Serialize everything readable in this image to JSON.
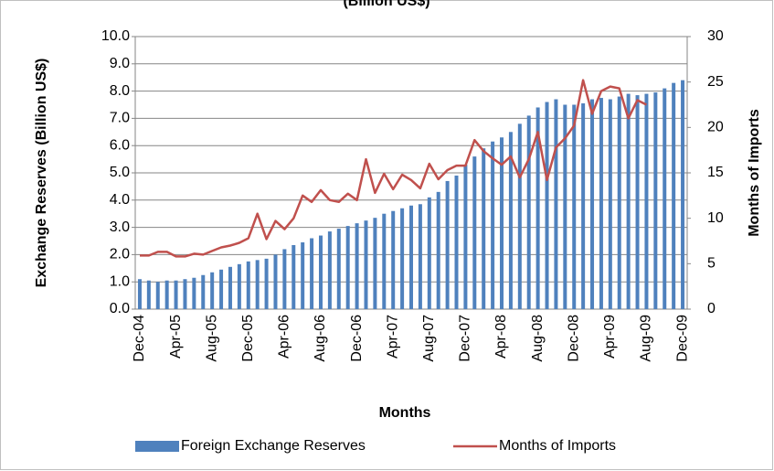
{
  "chart_data": {
    "type": "bar_line",
    "title": "(Billion US$)",
    "x_label": "Months",
    "y_label": "Exchange Reserves (Billion US$)",
    "y2_label": "Months of Imports",
    "categories": [
      "Dec-04",
      null,
      null,
      null,
      "Apr-05",
      null,
      null,
      null,
      "Aug-05",
      null,
      null,
      null,
      "Dec-05",
      null,
      null,
      null,
      "Apr-06",
      null,
      null,
      null,
      "Aug-06",
      null,
      null,
      null,
      "Dec-06",
      null,
      null,
      null,
      "Apr-07",
      null,
      null,
      null,
      "Aug-07",
      null,
      null,
      null,
      "Dec-07",
      null,
      null,
      null,
      "Apr-08",
      null,
      null,
      null,
      "Aug-08",
      null,
      null,
      null,
      "Dec-08",
      null,
      null,
      null,
      "Apr-09",
      null,
      null,
      null,
      "Aug-09",
      null,
      null,
      null,
      "Dec-09"
    ],
    "series": [
      {
        "name": "Foreign Exchange Reserves",
        "color": "#4f81bd",
        "kind": "bar",
        "values": [
          1.1,
          1.05,
          1.0,
          1.05,
          1.05,
          1.1,
          1.15,
          1.25,
          1.35,
          1.45,
          1.55,
          1.65,
          1.75,
          1.8,
          1.85,
          2.0,
          2.2,
          2.35,
          2.45,
          2.6,
          2.7,
          2.85,
          2.95,
          3.05,
          3.15,
          3.25,
          3.35,
          3.5,
          3.6,
          3.7,
          3.8,
          3.85,
          4.1,
          4.3,
          4.7,
          4.9,
          5.3,
          5.6,
          5.9,
          6.15,
          6.3,
          6.5,
          6.8,
          7.1,
          7.4,
          7.6,
          7.7,
          7.5,
          7.5,
          7.55,
          7.7,
          7.75,
          7.7,
          7.8,
          7.9,
          7.85,
          7.9,
          7.95,
          8.1,
          8.3,
          8.4
        ]
      },
      {
        "name": "Months of Imports",
        "color": "#c0504d",
        "kind": "line",
        "axis": "y2",
        "values": [
          5.9,
          5.9,
          6.3,
          6.3,
          5.8,
          5.8,
          6.1,
          6.0,
          6.4,
          6.8,
          7.0,
          7.3,
          7.8,
          10.5,
          7.7,
          9.7,
          8.8,
          10.0,
          12.5,
          11.8,
          13.1,
          12.0,
          11.8,
          12.7,
          12.0,
          16.5,
          12.8,
          14.9,
          13.2,
          14.8,
          14.2,
          13.3,
          16.0,
          14.3,
          15.3,
          15.8,
          15.8,
          18.6,
          17.4,
          16.6,
          15.9,
          16.8,
          14.5,
          16.5,
          19.5,
          14.2,
          17.8,
          18.8,
          20.2,
          25.2,
          21.5,
          24.0,
          24.5,
          24.3,
          21.0,
          23.0,
          22.5,
          null,
          null,
          null,
          null
        ]
      }
    ],
    "ylim": [
      0,
      10
    ],
    "yticks": [
      {
        "value": 0,
        "label": "0.0"
      },
      {
        "value": 1,
        "label": "1.0"
      },
      {
        "value": 2,
        "label": "2.0"
      },
      {
        "value": 3,
        "label": "3.0"
      },
      {
        "value": 4,
        "label": "4.0"
      },
      {
        "value": 5,
        "label": "5.0"
      },
      {
        "value": 6,
        "label": "6.0"
      },
      {
        "value": 7,
        "label": "7.0"
      },
      {
        "value": 8,
        "label": "8.0"
      },
      {
        "value": 9,
        "label": "9.0"
      },
      {
        "value": 10,
        "label": "10.0"
      }
    ],
    "y2lim": [
      0,
      30
    ],
    "y2ticks": [
      0,
      5,
      10,
      15,
      20,
      25,
      30
    ],
    "grid": true,
    "legend": "bottom"
  }
}
